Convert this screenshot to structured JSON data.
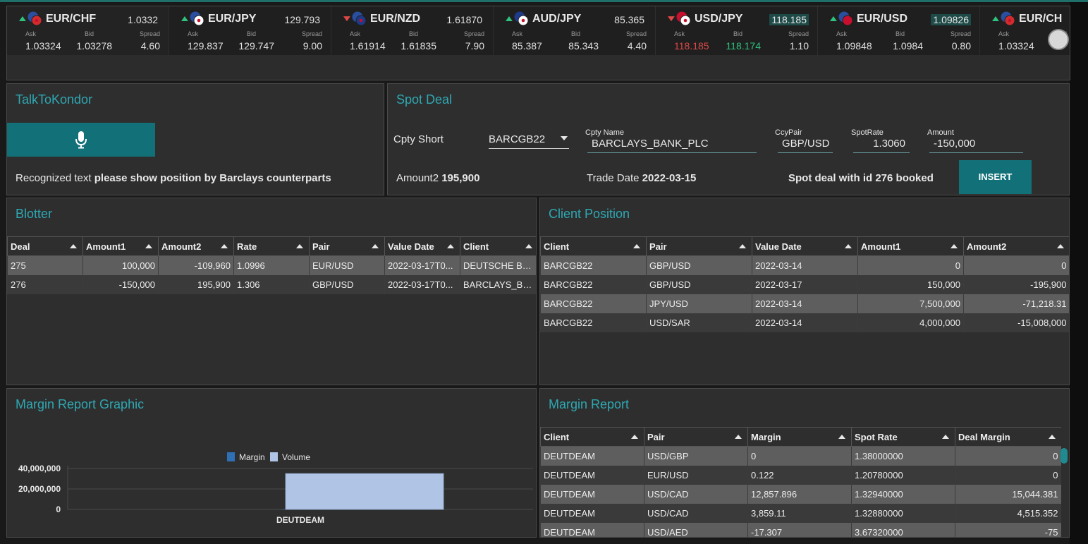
{
  "ticker": [
    {
      "pair": "EUR/CHF",
      "last": "1.0332",
      "direction": "up",
      "ask": "1.03324",
      "bid": "1.03278",
      "spread": "4.60",
      "highlight": false,
      "flag_a": "#2a4fa0",
      "flag_b": "#d22d2d",
      "ask_color": "normal",
      "bid_color": "normal"
    },
    {
      "pair": "EUR/JPY",
      "last": "129.793",
      "direction": "up",
      "ask": "129.837",
      "bid": "129.747",
      "spread": "9.00",
      "highlight": false,
      "flag_a": "#2a4fa0",
      "flag_b": "#ffffff",
      "ask_color": "normal",
      "bid_color": "normal"
    },
    {
      "pair": "EUR/NZD",
      "last": "1.61870",
      "direction": "down",
      "ask": "1.61914",
      "bid": "1.61835",
      "spread": "7.90",
      "highlight": false,
      "flag_a": "#2a4fa0",
      "flag_b": "#1d3b8a",
      "ask_color": "normal",
      "bid_color": "normal"
    },
    {
      "pair": "AUD/JPY",
      "last": "85.365",
      "direction": "up",
      "ask": "85.387",
      "bid": "85.343",
      "spread": "4.40",
      "highlight": false,
      "flag_a": "#1d3b8a",
      "flag_b": "#ffffff",
      "ask_color": "normal",
      "bid_color": "normal"
    },
    {
      "pair": "USD/JPY",
      "last": "118.185",
      "direction": "down",
      "ask": "118.185",
      "bid": "118.174",
      "spread": "1.10",
      "highlight": true,
      "flag_a": "#c8102e",
      "flag_b": "#ffffff",
      "ask_color": "red",
      "bid_color": "green"
    },
    {
      "pair": "EUR/USD",
      "last": "1.09826",
      "direction": "up",
      "ask": "1.09848",
      "bid": "1.0984",
      "spread": "0.80",
      "highlight": true,
      "flag_a": "#2a4fa0",
      "flag_b": "#c8102e",
      "ask_color": "normal",
      "bid_color": "normal"
    },
    {
      "pair": "EUR/CH",
      "last": "",
      "direction": "up",
      "ask": "1.03324",
      "bid": "",
      "spread": "",
      "highlight": false,
      "flag_a": "#2a4fa0",
      "flag_b": "#d22d2d",
      "ask_color": "normal",
      "bid_color": "normal"
    }
  ],
  "ticker_labels": {
    "ask": "Ask",
    "bid": "Bid",
    "spread": "Spread"
  },
  "talk": {
    "title": "TalkToKondor",
    "recognized_prefix": "Recognized text ",
    "recognized_text": "please show position by Barclays counterparts"
  },
  "spot": {
    "title": "Spot Deal",
    "cpty_short_label": "Cpty Short",
    "cpty_short_value": "BARCGB22",
    "cpty_name_label": "Cpty Name",
    "cpty_name_value": "BARCLAYS_BANK_PLC",
    "ccypair_label": "CcyPair",
    "ccypair_value": "GBP/USD",
    "spotrate_label": "SpotRate",
    "spotrate_value": "1.3060",
    "amount_label": "Amount",
    "amount_value": "-150,000",
    "amount2_label": "Amount2 ",
    "amount2_value": "195,900",
    "trade_date_label": "Trade Date ",
    "trade_date_value": "2022-03-15",
    "status": "Spot deal with id 276 booked",
    "insert_label": "INSERT"
  },
  "blotter": {
    "title": "Blotter",
    "columns": [
      "Deal",
      "Amount1",
      "Amount2",
      "Rate",
      "Pair",
      "Value Date",
      "Client"
    ],
    "rows": [
      [
        "275",
        "100,000",
        "-109,960",
        "1.0996",
        "EUR/USD",
        "2022-03-17T0...",
        "DEUTSCHE BA..."
      ],
      [
        "276",
        "-150,000",
        "195,900",
        "1.306",
        "GBP/USD",
        "2022-03-17T0...",
        "BARCLAYS_BA..."
      ]
    ]
  },
  "client_position": {
    "title": "Client Position",
    "columns": [
      "Client",
      "Pair",
      "Value Date",
      "Amount1",
      "Amount2"
    ],
    "rows": [
      [
        "BARCGB22",
        "GBP/USD",
        "2022-03-14",
        "0",
        "0"
      ],
      [
        "BARCGB22",
        "GBP/USD",
        "2022-03-17",
        "150,000",
        "-195,900"
      ],
      [
        "BARCGB22",
        "JPY/USD",
        "2022-03-14",
        "7,500,000",
        "-71,218.31"
      ],
      [
        "BARCGB22",
        "USD/SAR",
        "2022-03-14",
        "4,000,000",
        "-15,008,000"
      ]
    ]
  },
  "margin_graphic": {
    "title": "Margin Report Graphic"
  },
  "chart_data": {
    "type": "bar",
    "categories": [
      "DEUTDEAM"
    ],
    "series": [
      {
        "name": "Margin",
        "values": [
          15000
        ],
        "color": "#2f6fb3"
      },
      {
        "name": "Volume",
        "values": [
          35000000
        ],
        "color": "#b0c4e6"
      }
    ],
    "ylim": [
      0,
      40000000
    ],
    "yticks": [
      "40,000,000",
      "20,000,000",
      "0"
    ],
    "ytick_values": [
      40000000,
      20000000,
      0
    ],
    "legend": "top",
    "grid": true
  },
  "margin_report": {
    "title": "Margin Report",
    "columns": [
      "Client",
      "Pair",
      "Margin",
      "Spot Rate",
      "Deal Margin"
    ],
    "rows": [
      [
        "DEUTDEAM",
        "USD/GBP",
        "0",
        "1.38000000",
        "0"
      ],
      [
        "DEUTDEAM",
        "EUR/USD",
        "0.122",
        "1.20780000",
        "0"
      ],
      [
        "DEUTDEAM",
        "USD/CAD",
        "12,857.896",
        "1.32940000",
        "15,044.381"
      ],
      [
        "DEUTDEAM",
        "USD/CAD",
        "3,859.11",
        "1.32880000",
        "4,515.352"
      ],
      [
        "DEUTDEAM",
        "USD/AED",
        "-17.307",
        "3.67320000",
        "-75"
      ]
    ]
  }
}
